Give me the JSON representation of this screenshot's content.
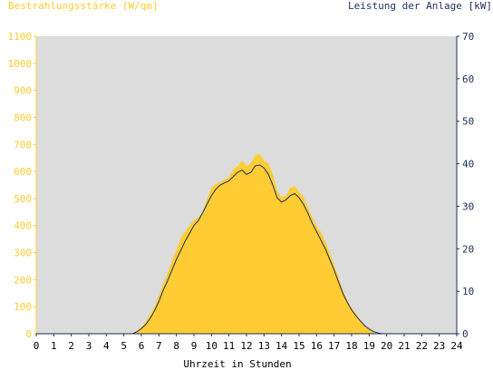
{
  "chart_data": {
    "type": "area",
    "left_axis_label": "Bestrahlungsstärke [W/qm]",
    "right_axis_label": "Leistung der Anlage [kW]",
    "xlabel": "Uhrzeit in Stunden",
    "x_ticks": [
      "0",
      "1",
      "2",
      "3",
      "4",
      "5",
      "6",
      "7",
      "8",
      "9",
      "10",
      "11",
      "12",
      "13",
      "14",
      "15",
      "16",
      "17",
      "18",
      "19",
      "20",
      "21",
      "22",
      "23",
      "24"
    ],
    "left_ticks": [
      "0",
      "100",
      "200",
      "300",
      "400",
      "500",
      "600",
      "700",
      "800",
      "900",
      "1000",
      "1100"
    ],
    "right_ticks": [
      "0",
      "10",
      "20",
      "30",
      "40",
      "50",
      "60",
      "70"
    ],
    "xlim": [
      0,
      24
    ],
    "ylim_left": [
      0,
      1100
    ],
    "ylim_right": [
      0,
      70
    ],
    "grid": false,
    "colors": {
      "background": "#dcdcdc",
      "irradiance_fill": "#ffcc33",
      "power_line": "#1c2e5a",
      "left_axis_text": "#ffcc33",
      "right_axis_text": "#1c2e5a",
      "xlabel_text": "#000000"
    },
    "series": [
      {
        "quantity": "irradiance",
        "axis": "left",
        "x": [
          0,
          5.5,
          5.75,
          6,
          6.25,
          6.5,
          6.75,
          7,
          7.25,
          7.5,
          7.75,
          8,
          8.25,
          8.5,
          8.75,
          9,
          9.25,
          9.5,
          9.75,
          10,
          10.25,
          10.5,
          10.75,
          11,
          11.25,
          11.5,
          11.75,
          12,
          12.25,
          12.5,
          12.75,
          13,
          13.25,
          13.5,
          13.75,
          14,
          14.25,
          14.5,
          14.75,
          15,
          15.25,
          15.5,
          15.75,
          16,
          16.25,
          16.5,
          16.75,
          17,
          17.25,
          17.5,
          17.75,
          18,
          18.25,
          18.5,
          18.75,
          19,
          19.25,
          19.5,
          24
        ],
        "values": [
          0,
          0,
          10,
          25,
          45,
          70,
          100,
          140,
          185,
          225,
          270,
          310,
          355,
          380,
          400,
          420,
          430,
          450,
          500,
          540,
          555,
          560,
          570,
          580,
          610,
          620,
          640,
          620,
          630,
          660,
          665,
          640,
          630,
          590,
          530,
          505,
          510,
          540,
          545,
          525,
          505,
          470,
          430,
          400,
          375,
          340,
          300,
          255,
          210,
          160,
          125,
          95,
          75,
          50,
          30,
          15,
          5,
          0,
          0
        ]
      },
      {
        "quantity": "power",
        "axis": "right",
        "x": [
          0,
          5.5,
          5.75,
          6,
          6.25,
          6.5,
          6.75,
          7,
          7.25,
          7.5,
          7.75,
          8,
          8.25,
          8.5,
          8.75,
          9,
          9.25,
          9.5,
          9.75,
          10,
          10.25,
          10.5,
          10.75,
          11,
          11.25,
          11.5,
          11.75,
          12,
          12.25,
          12.5,
          12.75,
          13,
          13.25,
          13.5,
          13.75,
          14,
          14.25,
          14.5,
          14.75,
          15,
          15.25,
          15.5,
          15.75,
          16,
          16.25,
          16.5,
          16.75,
          17,
          17.25,
          17.5,
          17.75,
          18,
          18.25,
          18.5,
          18.75,
          19,
          19.25,
          19.5,
          19.75,
          24
        ],
        "values": [
          0,
          0,
          0.5,
          1.2,
          2.2,
          3.6,
          5.4,
          7.6,
          10.3,
          12.5,
          15,
          17.5,
          19.6,
          21.8,
          23.6,
          25.5,
          26.6,
          28.5,
          30.5,
          32.5,
          34,
          35,
          35.5,
          36,
          37,
          38,
          38.5,
          37.5,
          38,
          39.5,
          39.7,
          39,
          37.5,
          35,
          32,
          31,
          31.5,
          32.5,
          33,
          32,
          30.5,
          28.4,
          26,
          24,
          22,
          20,
          17.5,
          15,
          12.2,
          9.5,
          7.4,
          5.6,
          4.2,
          3,
          1.9,
          1.1,
          0.5,
          0.2,
          0,
          0
        ]
      }
    ]
  }
}
